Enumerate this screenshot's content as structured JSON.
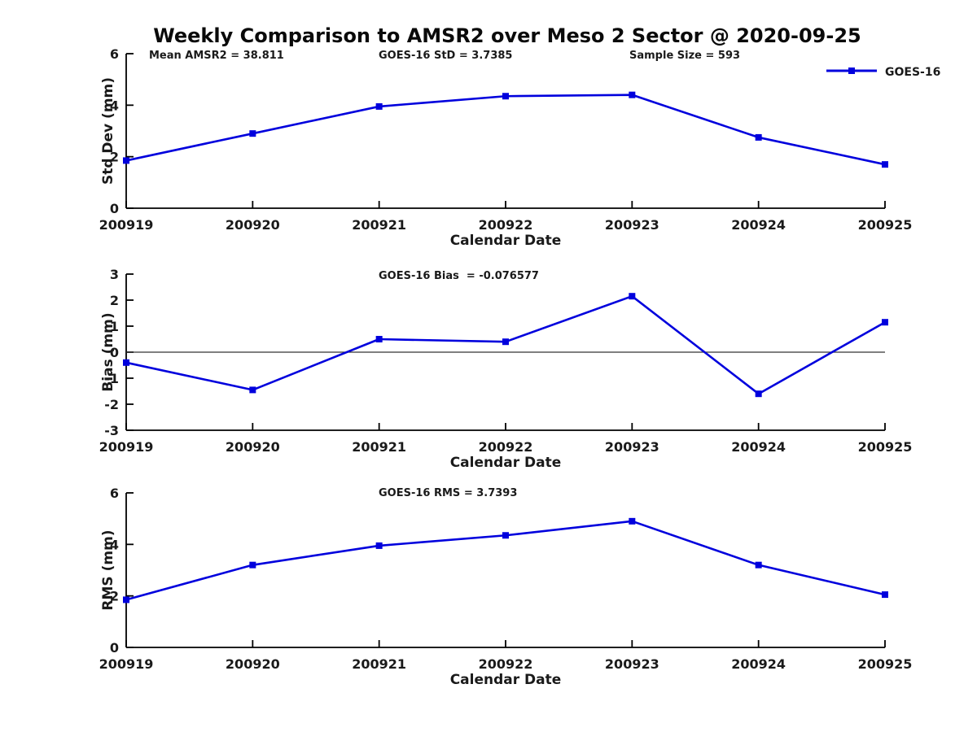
{
  "page": {
    "title": "Weekly Comparison to AMSR2 over Meso 2 Sector @ 2020-09-25"
  },
  "legend": {
    "label": "GOES-16"
  },
  "colors": {
    "line": "#0000dd",
    "text": "#1a1a1a",
    "axis": "#000000",
    "zero_line": "#333333",
    "background": "#ffffff"
  },
  "chart_data": [
    {
      "type": "line",
      "ylabel": "Std Dev (mm)",
      "xlabel": "Calendar Date",
      "categories": [
        "200919",
        "200920",
        "200921",
        "200922",
        "200923",
        "200924",
        "200925"
      ],
      "series": [
        {
          "name": "GOES-16",
          "values": [
            1.85,
            2.9,
            3.95,
            4.35,
            4.4,
            2.75,
            1.7
          ]
        }
      ],
      "ylim": [
        0,
        6
      ],
      "yticks": [
        0,
        2,
        4,
        6
      ],
      "grid": false,
      "legend_position": "top-right",
      "annotations": [
        "Mean AMSR2 = 38.811",
        "GOES-16 StD = 3.7385",
        "Sample Size = 593"
      ]
    },
    {
      "type": "line",
      "ylabel": "Bias (mm)",
      "xlabel": "Calendar Date",
      "categories": [
        "200919",
        "200920",
        "200921",
        "200922",
        "200923",
        "200924",
        "200925"
      ],
      "series": [
        {
          "name": "GOES-16",
          "values": [
            -0.4,
            -1.45,
            0.5,
            0.4,
            2.15,
            -1.6,
            1.15
          ]
        }
      ],
      "ylim": [
        -3,
        3
      ],
      "yticks": [
        3,
        2,
        1,
        0,
        -1,
        -2,
        -3
      ],
      "zero_line": true,
      "grid": false,
      "annotation": "GOES-16 Bias  = -0.076577"
    },
    {
      "type": "line",
      "ylabel": "RMS (mm)",
      "xlabel": "Calendar Date",
      "categories": [
        "200919",
        "200920",
        "200921",
        "200922",
        "200923",
        "200924",
        "200925"
      ],
      "series": [
        {
          "name": "GOES-16",
          "values": [
            1.85,
            3.2,
            3.95,
            4.35,
            4.9,
            3.2,
            2.05
          ]
        }
      ],
      "ylim": [
        0,
        6
      ],
      "yticks": [
        0,
        2,
        4,
        6
      ],
      "grid": false,
      "annotation": "GOES-16 RMS = 3.7393"
    }
  ]
}
